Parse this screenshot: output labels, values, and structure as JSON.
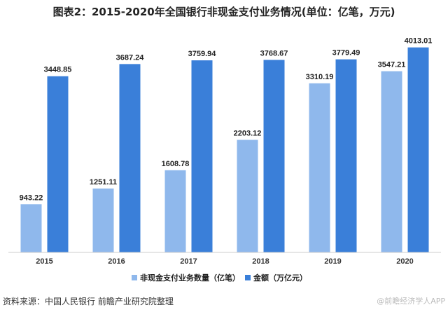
{
  "title": "图表2：2015-2020年全国银行非现金支付业务情况(单位：亿笔，万元)",
  "source": "资料来源：中国人民银行 前瞻产业研究院整理",
  "watermark": "@前瞻经济学人APP",
  "colors": {
    "series1": "#8fb8ec",
    "series2": "#3a7fd9"
  },
  "chart_data": {
    "type": "bar",
    "categories": [
      "2015",
      "2016",
      "2017",
      "2018",
      "2019",
      "2020"
    ],
    "series": [
      {
        "name": "非现金支付业务数量（亿笔）",
        "values": [
          943.22,
          1251.11,
          1608.78,
          2203.12,
          3310.19,
          3547.21
        ]
      },
      {
        "name": "金额（万亿元）",
        "values": [
          3448.85,
          3687.24,
          3759.94,
          3768.67,
          3779.49,
          4013.01
        ]
      }
    ],
    "ylim": [
      0,
      4200
    ],
    "grid": false,
    "legend": "bottom"
  }
}
